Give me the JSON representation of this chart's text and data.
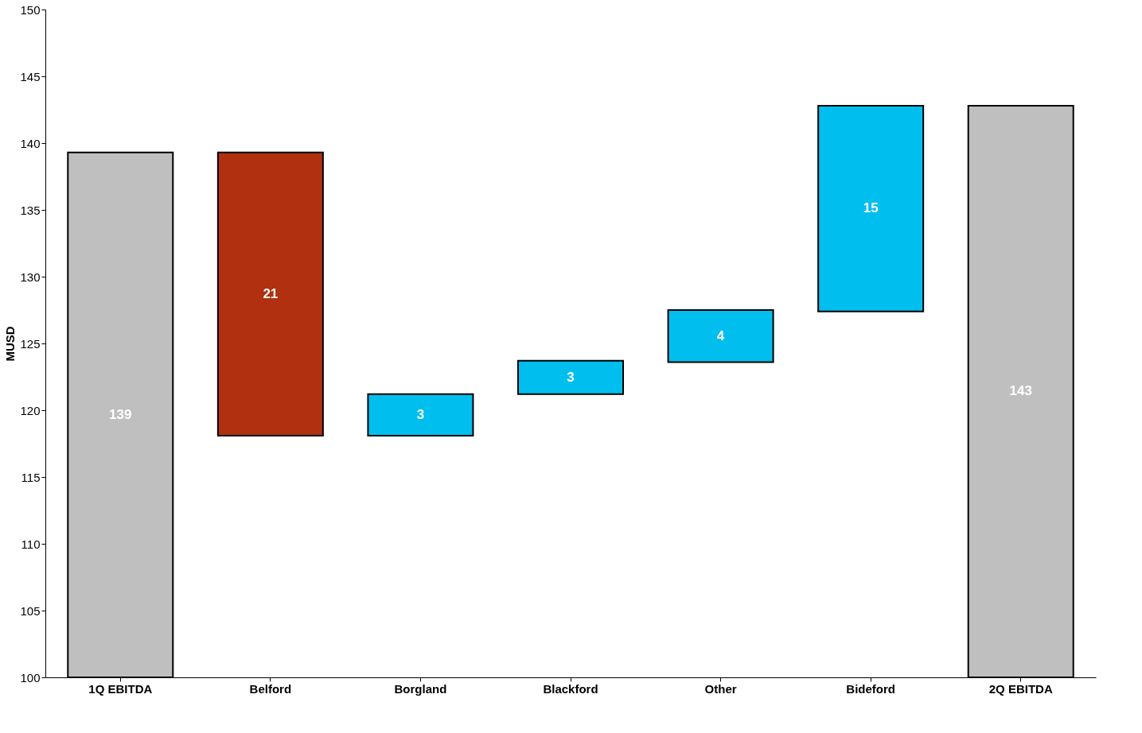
{
  "chart_data": {
    "type": "bar",
    "ylabel": "MUSD",
    "categories": [
      "1Q EBITDA",
      "Belford",
      "Borgland",
      "Blackford",
      "Other",
      "Bideford",
      "2Q EBITDA"
    ],
    "values": [
      139.3,
      -21.2,
      3.1,
      2.5,
      3.9,
      15.4,
      142.8
    ],
    "base": [
      null,
      139.3,
      118.1,
      121.2,
      123.6,
      127.4,
      null
    ],
    "colors": [
      "#bfbfbf",
      "#b0300f",
      "#00bfef",
      "#00bfef",
      "#00bfef",
      "#00bfef",
      "#bfbfbf"
    ],
    "value_labels": [
      "139",
      "21",
      "3",
      "3",
      "4",
      "15",
      "143"
    ],
    "ylim": [
      100,
      150
    ],
    "yticks": [
      100,
      105,
      110,
      115,
      120,
      125,
      130,
      135,
      140,
      145,
      150
    ],
    "grid": false
  }
}
